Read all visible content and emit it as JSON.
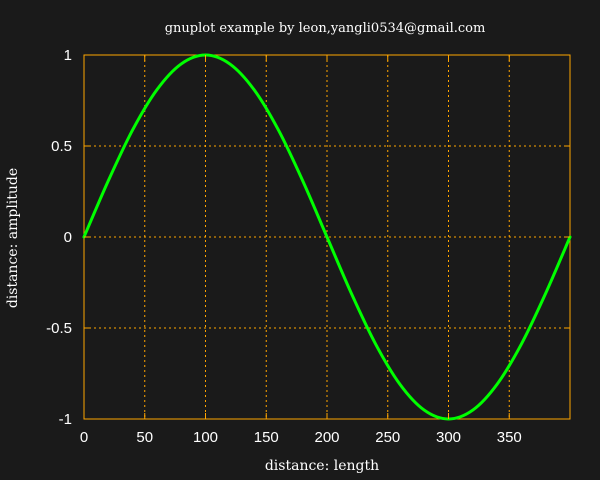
{
  "chart_data": {
    "type": "line",
    "title": "gnuplot example by leon,yangli0534@gmail.com",
    "xlabel": "distance: length",
    "ylabel": "distance: amplitude",
    "xlim": [
      0,
      400
    ],
    "ylim": [
      -1,
      1
    ],
    "x_ticks": [
      0,
      50,
      100,
      150,
      200,
      250,
      300,
      350
    ],
    "x_tick_labels": [
      "0",
      "50",
      "100",
      "150",
      "200",
      "250",
      "300",
      "350"
    ],
    "y_ticks": [
      1,
      0.5,
      0,
      -0.5,
      -1
    ],
    "y_tick_labels": [
      "1",
      "0.5",
      "0",
      "-0.5",
      "-1"
    ],
    "grid": true,
    "series": [
      {
        "x": [
          0,
          20,
          40,
          60,
          80,
          100,
          120,
          140,
          160,
          180,
          200,
          220,
          240,
          260,
          280,
          300,
          320,
          340,
          360,
          380,
          400
        ],
        "values": [
          0,
          0.309,
          0.588,
          0.809,
          0.951,
          1,
          0.951,
          0.809,
          0.588,
          0.309,
          0,
          -0.309,
          -0.588,
          -0.809,
          -0.951,
          -1,
          -0.951,
          -0.809,
          -0.588,
          -0.309,
          0
        ],
        "color": "#00ff00"
      }
    ],
    "colors": {
      "background": "#1a1a1a",
      "frame": "#ffa500",
      "grid": "#ffa500",
      "text": "#ffffff"
    }
  }
}
